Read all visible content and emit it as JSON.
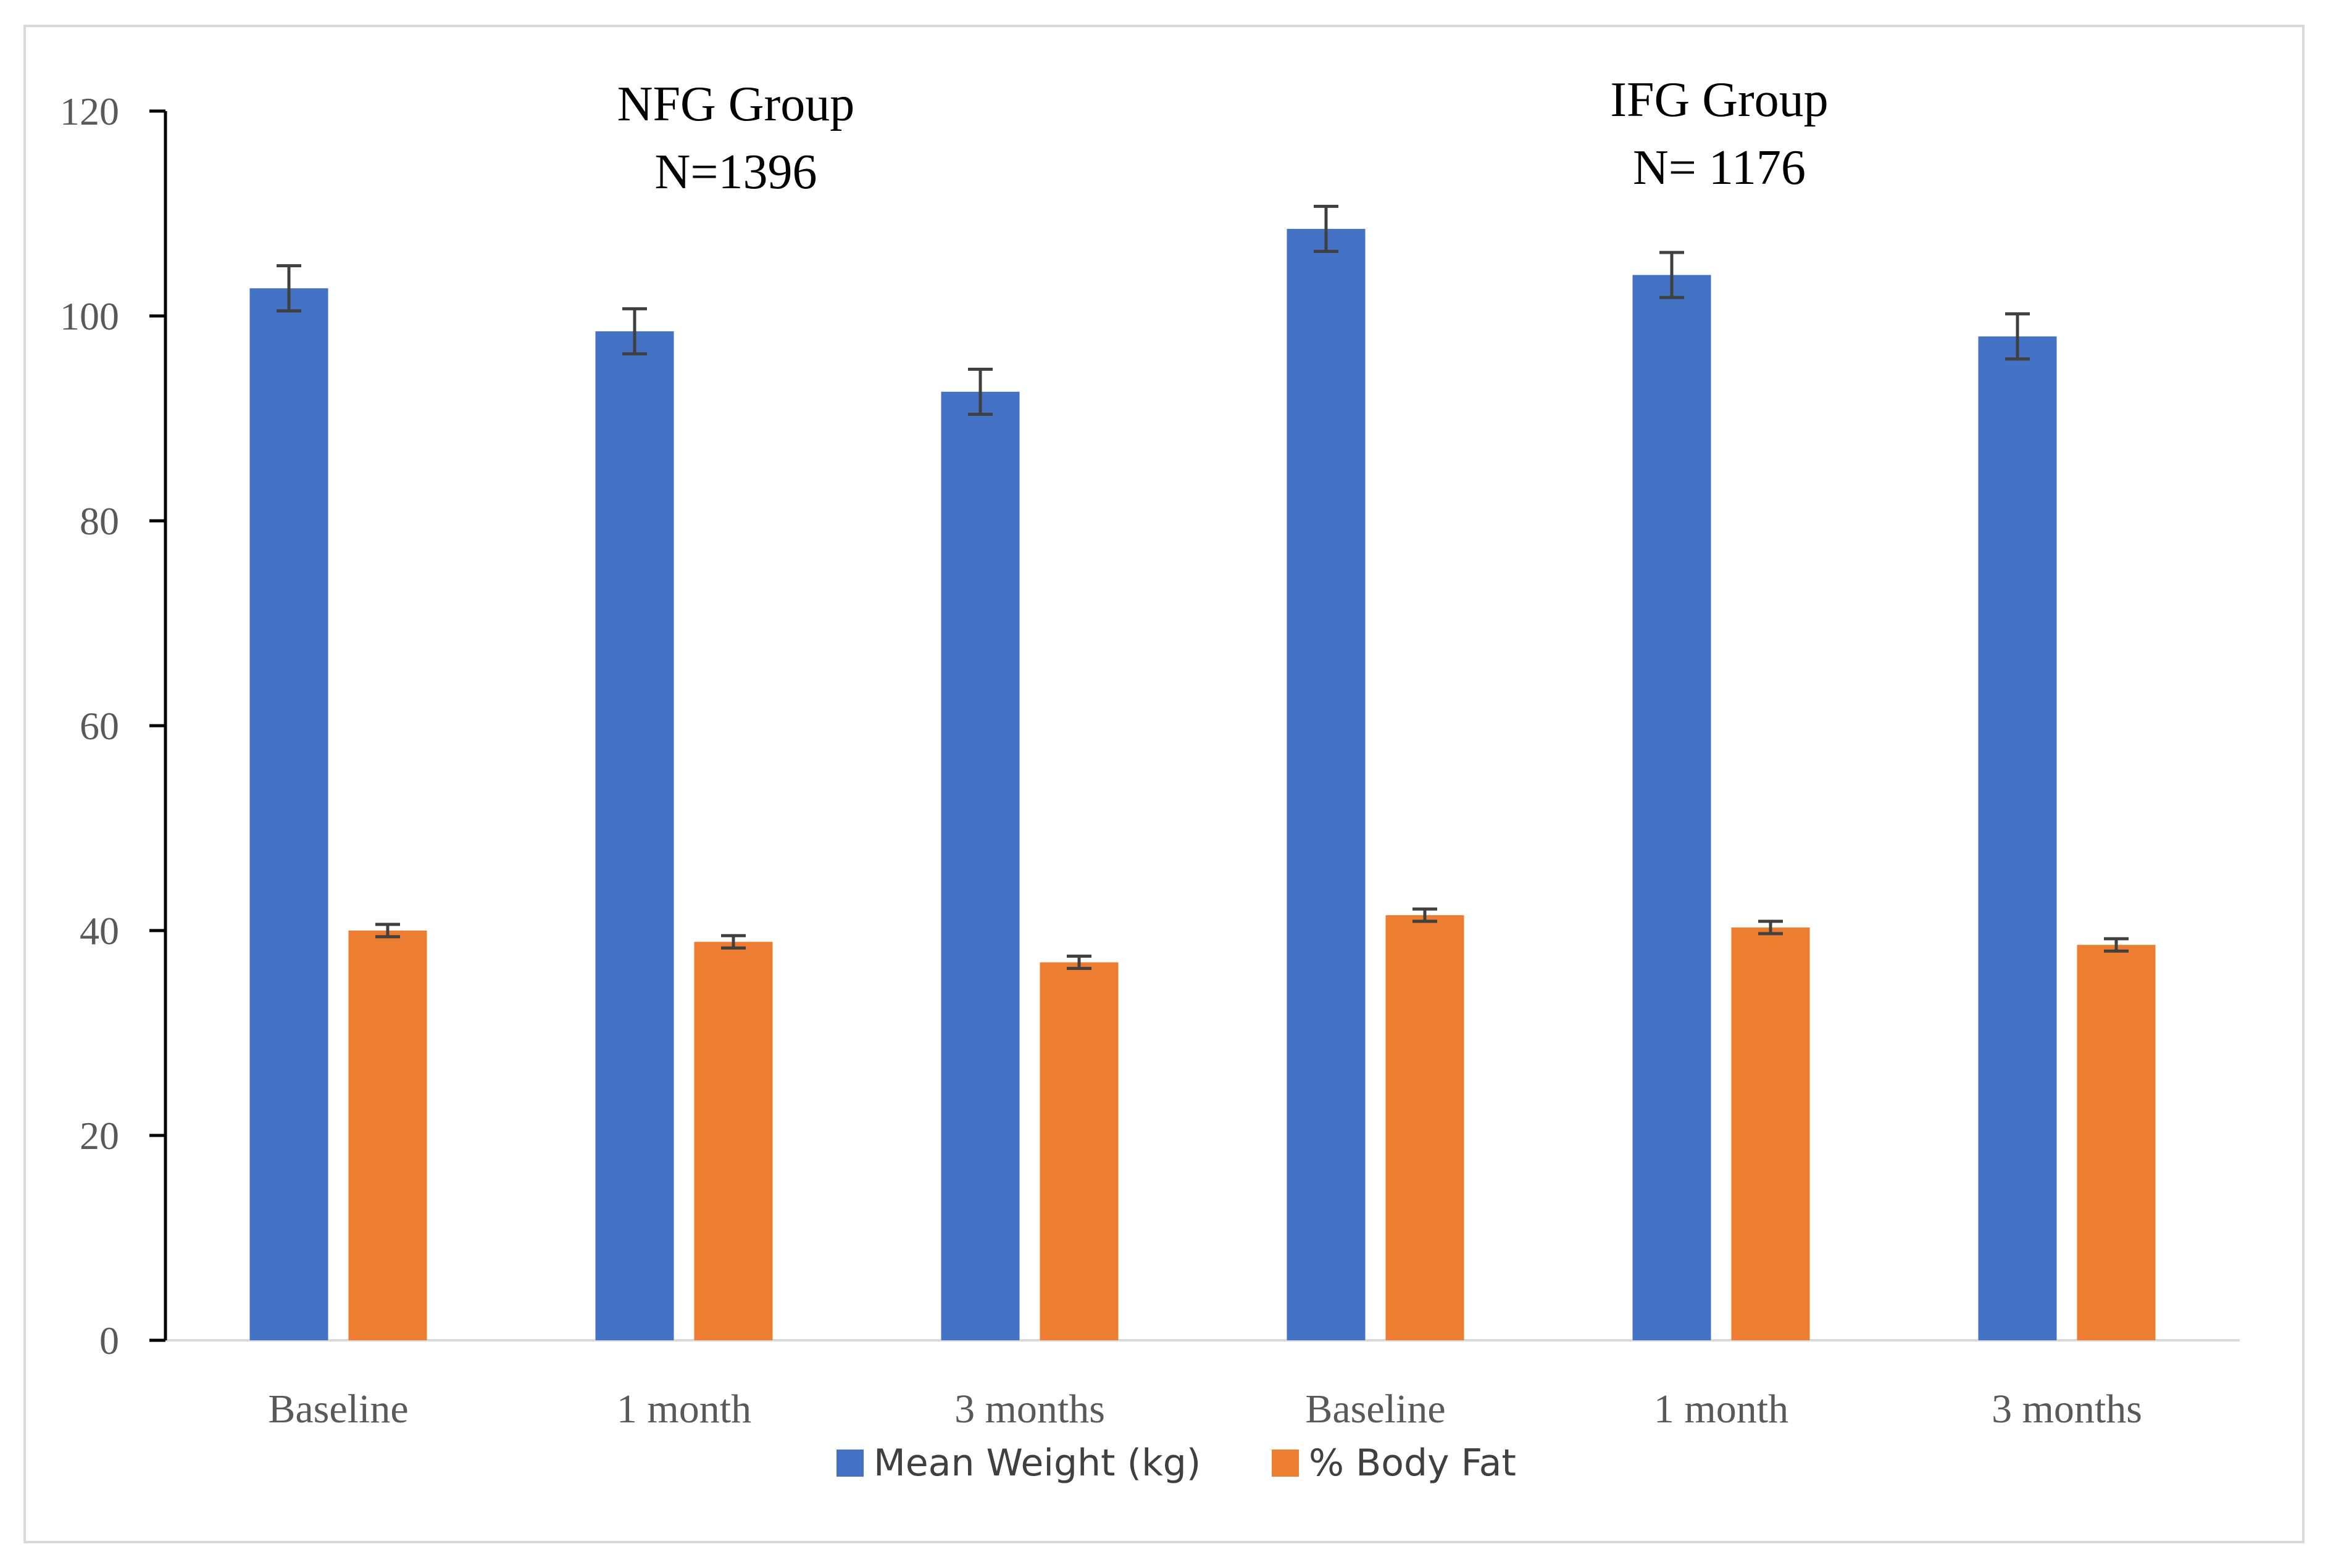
{
  "chart_data": {
    "type": "bar",
    "categories": [
      "Baseline",
      "1 month",
      "3 months",
      "Baseline",
      "1 month",
      "3 months"
    ],
    "series": [
      {
        "name": "Mean Weight (kg)",
        "color": "#4472c4",
        "values": [
          102.7,
          98.5,
          92.6,
          108.5,
          104.0,
          98.0
        ],
        "errors": [
          2.2,
          2.2,
          2.2,
          2.2,
          2.2,
          2.2
        ]
      },
      {
        "name": "% Body Fat",
        "color": "#ed7d31",
        "values": [
          40.0,
          38.9,
          36.9,
          41.5,
          40.3,
          38.6
        ],
        "errors": [
          0.6,
          0.6,
          0.6,
          0.6,
          0.6,
          0.6
        ]
      }
    ],
    "ylim": [
      0,
      120
    ],
    "yticks": [
      0,
      20,
      40,
      60,
      80,
      100,
      120
    ],
    "groups": [
      {
        "name": "NFG Group",
        "n": "N=1396"
      },
      {
        "name": "IFG Group",
        "n": "N= 1176"
      }
    ],
    "legend_position": "bottom",
    "grid": false,
    "title": "",
    "xlabel": "",
    "ylabel": ""
  }
}
